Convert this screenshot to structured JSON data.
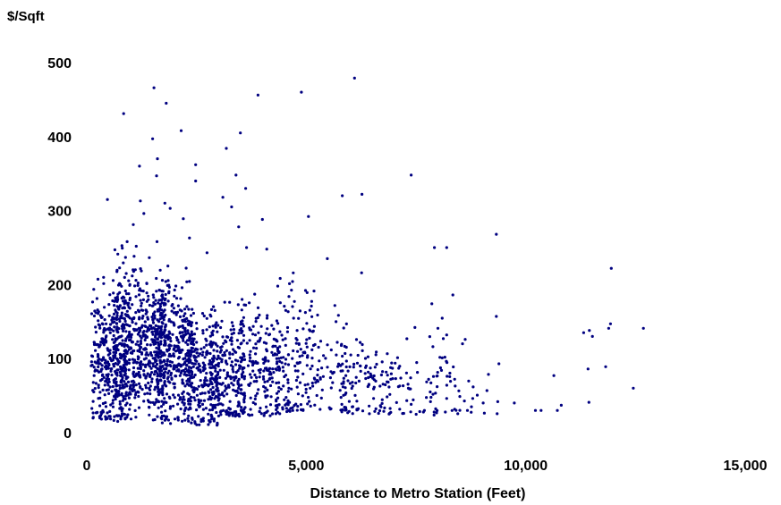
{
  "chart_data": {
    "type": "scatter",
    "title": "",
    "ylabel": "$/Sqft",
    "xlabel": "Distance to Metro Station (Feet)",
    "xlim": [
      0,
      15000
    ],
    "ylim": [
      0,
      500
    ],
    "x_ticks": [
      0,
      5000,
      10000,
      15000
    ],
    "x_tick_labels": [
      "0",
      "5,000",
      "10,000",
      "15,000"
    ],
    "y_ticks": [
      0,
      100,
      200,
      300,
      400,
      500
    ],
    "y_tick_labels": [
      "0",
      "100",
      "200",
      "300",
      "400",
      "500"
    ],
    "grid": false,
    "legend": "none",
    "marker_color": "#000080",
    "series": [
      {
        "points": [
          [
            1530,
            466
          ],
          [
            6100,
            479
          ],
          [
            4890,
            460
          ],
          [
            3900,
            456
          ],
          [
            840,
            431
          ],
          [
            1810,
            445
          ],
          [
            2150,
            408
          ],
          [
            3500,
            405
          ],
          [
            1500,
            397
          ],
          [
            3180,
            384
          ],
          [
            1610,
            370
          ],
          [
            1200,
            360
          ],
          [
            2480,
            362
          ],
          [
            1590,
            347
          ],
          [
            3400,
            348
          ],
          [
            7390,
            348
          ],
          [
            2480,
            340
          ],
          [
            3620,
            330
          ],
          [
            5820,
            320
          ],
          [
            6270,
            322
          ],
          [
            3100,
            318
          ],
          [
            1220,
            313
          ],
          [
            470,
            315
          ],
          [
            1780,
            310
          ],
          [
            3300,
            305
          ],
          [
            5050,
            292
          ],
          [
            4000,
            288
          ],
          [
            2200,
            289
          ],
          [
            1900,
            303
          ],
          [
            1300,
            296
          ],
          [
            1060,
            281
          ],
          [
            3460,
            278
          ],
          [
            9330,
            268
          ],
          [
            2340,
            263
          ],
          [
            1600,
            258
          ],
          [
            920,
            258
          ],
          [
            7920,
            250
          ],
          [
            8200,
            250
          ],
          [
            4100,
            248
          ],
          [
            3640,
            250
          ],
          [
            11950,
            222
          ],
          [
            6260,
            216
          ],
          [
            5480,
            235
          ],
          [
            2740,
            243
          ],
          [
            640,
            247
          ],
          [
            12680,
            141
          ],
          [
            11930,
            147
          ],
          [
            11520,
            130
          ],
          [
            11890,
            141
          ],
          [
            11320,
            135
          ],
          [
            11450,
            138
          ],
          [
            12450,
            60
          ],
          [
            11820,
            89
          ],
          [
            11420,
            86
          ],
          [
            10640,
            77
          ],
          [
            10720,
            30
          ],
          [
            10810,
            37
          ],
          [
            11440,
            41
          ],
          [
            9390,
            93
          ],
          [
            9330,
            157
          ],
          [
            9030,
            40
          ],
          [
            10350,
            30
          ],
          [
            10220,
            30
          ],
          [
            9740,
            40
          ],
          [
            8560,
            120
          ],
          [
            8620,
            126
          ],
          [
            8200,
            132
          ],
          [
            8000,
            141
          ],
          [
            8340,
            186
          ],
          [
            7860,
            174
          ]
        ]
      }
    ]
  }
}
